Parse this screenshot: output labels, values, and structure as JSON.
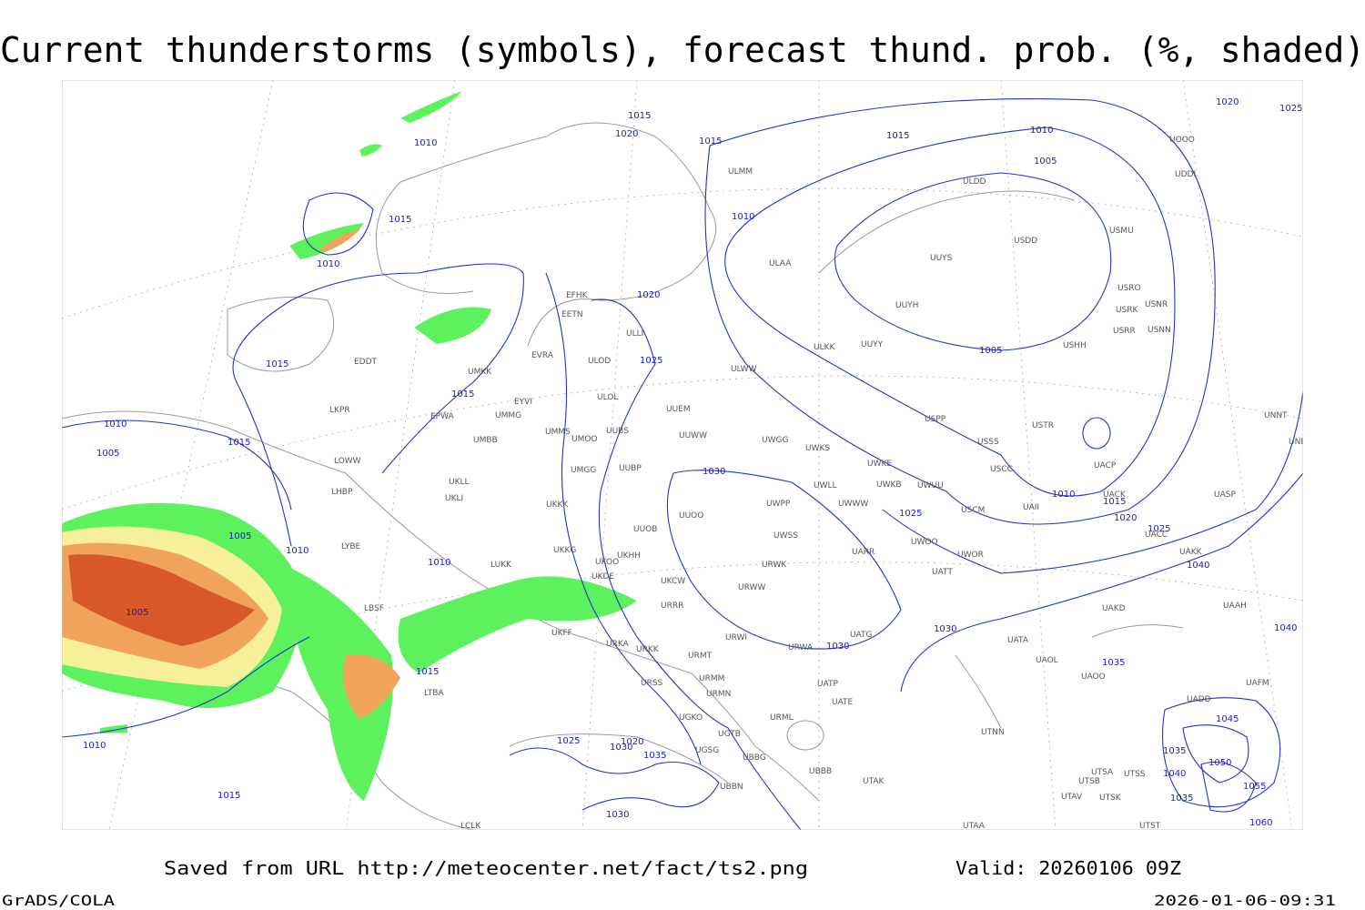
{
  "header": {
    "title": "Current thunderstorms (symbols), forecast thund. prob. (%, shaded)"
  },
  "map": {
    "stations": [
      "ULMM",
      "ULDD",
      "USDD",
      "UUYS",
      "USMU",
      "ULAA",
      "USRO",
      "USRK",
      "USNR",
      "USRR",
      "USNN",
      "UUYH",
      "USHH",
      "ULKK",
      "UUYY",
      "EFHK",
      "EETN",
      "ULLI",
      "EVRA",
      "ULOD",
      "EDDT",
      "UMKK",
      "ULWW",
      "ULOL",
      "EYVI",
      "UUEM",
      "EPWA",
      "UMMG",
      "LKPR",
      "USPP",
      "USTR",
      "UMMS",
      "UUBS",
      "UUWW",
      "UMOO",
      "UWGG",
      "UWKS",
      "USSS",
      "UNNT",
      "UNBB",
      "UMBB",
      "LOWW",
      "UOOO",
      "UDDI",
      "UWKE",
      "UWKB",
      "UWUU",
      "UWLL",
      "UMGG",
      "UUBP",
      "USCC",
      "UACP",
      "LHBP",
      "UKLL",
      "UKLI",
      "UWWW",
      "UWPP",
      "UAII",
      "USCM",
      "UACK",
      "UASP",
      "UKKK",
      "UUOO",
      "UUOB",
      "UWSS",
      "UWOO",
      "UWOR",
      "UAKK",
      "LYBE",
      "UKHH",
      "UKOO",
      "UKKG",
      "UATT",
      "UKDE",
      "LUKK",
      "URWK",
      "UARR",
      "UKCW",
      "URWW",
      "UACC",
      "UAKD",
      "UAAH",
      "URRR",
      "LBSF",
      "UATG",
      "URWI",
      "URWA",
      "UATA",
      "UKFF",
      "URKA",
      "URKK",
      "URMT",
      "UAOL",
      "UAOO",
      "URSS",
      "URMM",
      "UATP",
      "UAFM",
      "URMN",
      "UATE",
      "LTBA",
      "UADD",
      "UGKO",
      "UTNN",
      "URML",
      "UGTB",
      "UGSG",
      "UBBG",
      "UTSA",
      "UTSS",
      "UBBB",
      "UTSB",
      "UTAK",
      "UBBN",
      "UTAV",
      "UTSK",
      "LCLK",
      "UTAA",
      "UTST"
    ],
    "isobar_labels": [
      1015,
      1020,
      1010,
      1015,
      1015,
      1010,
      1005,
      1020,
      1025,
      1015,
      1010,
      1010,
      1020,
      1005,
      1025,
      1015,
      1015,
      1010,
      1015,
      1005,
      1030,
      1010,
      1015,
      1020,
      1025,
      1025,
      1005,
      1010,
      1010,
      1040,
      1005,
      1030,
      1040,
      1030,
      1035,
      1015,
      1045,
      1010,
      1025,
      1020,
      1030,
      1035,
      1035,
      1050,
      1040,
      1055,
      1035,
      1015,
      1030,
      1060
    ]
  },
  "footer": {
    "saved_from": "Saved from URL http://meteocenter.net/fact/ts2.png",
    "valid": "Valid: 20260106 09Z",
    "software": "GrADS/COLA",
    "timestamp": "2026-01-06-09:31"
  }
}
